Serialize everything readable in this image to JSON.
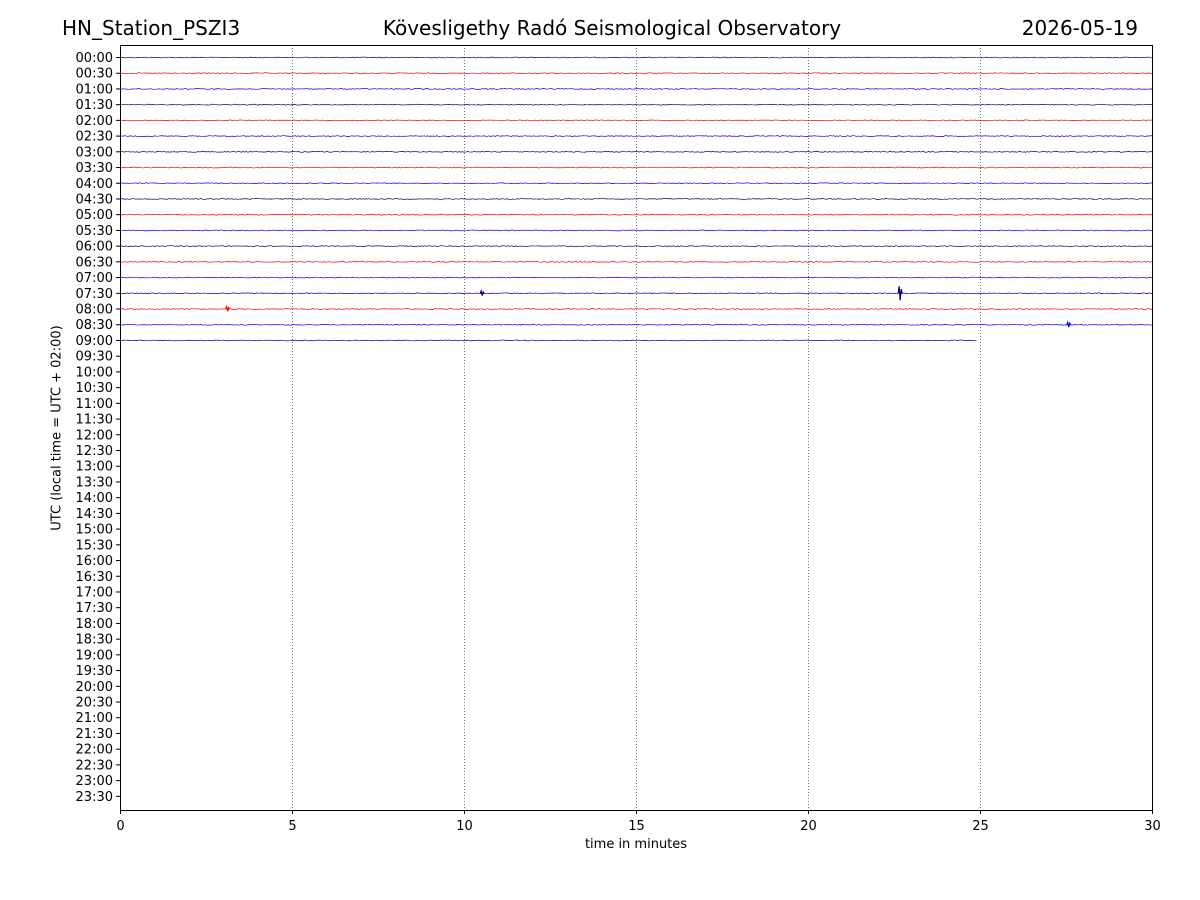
{
  "header": {
    "station": "HN_Station_PSZI3",
    "observatory": "Kövesligethy Radó Seismological Observatory",
    "date": "2026-05-19"
  },
  "chart_data": {
    "type": "line",
    "xlabel": "time in minutes",
    "ylabel": "UTC (local time = UTC + 02:00)",
    "xlim": [
      0,
      30
    ],
    "xticks": [
      "0",
      "5",
      "10",
      "15",
      "20",
      "25",
      "30"
    ],
    "xtick_values": [
      0,
      5,
      10,
      15,
      20,
      25,
      30
    ],
    "vgrid_values": [
      5,
      10,
      15,
      20,
      25
    ],
    "grid": "vertical dotted lines",
    "row_labels": [
      "00:00",
      "00:30",
      "01:00",
      "01:30",
      "02:00",
      "02:30",
      "03:00",
      "03:30",
      "04:00",
      "04:30",
      "05:00",
      "05:30",
      "06:00",
      "06:30",
      "07:00",
      "07:30",
      "08:00",
      "08:30",
      "09:00",
      "09:30",
      "10:00",
      "10:30",
      "11:00",
      "11:30",
      "12:00",
      "12:30",
      "13:00",
      "13:30",
      "14:00",
      "14:30",
      "15:00",
      "15:30",
      "16:00",
      "16:30",
      "17:00",
      "17:30",
      "18:00",
      "18:30",
      "19:00",
      "19:30",
      "20:00",
      "20:30",
      "21:00",
      "21:30",
      "22:00",
      "22:30",
      "23:00",
      "23:30"
    ],
    "trace_colors": [
      "#00007f",
      "#ff0000",
      "#0000ff"
    ],
    "traces": [
      {
        "row": "00:00",
        "end": 30,
        "events": []
      },
      {
        "row": "00:30",
        "end": 30,
        "events": []
      },
      {
        "row": "01:00",
        "end": 30,
        "events": []
      },
      {
        "row": "01:30",
        "end": 30,
        "events": []
      },
      {
        "row": "02:00",
        "end": 30,
        "events": []
      },
      {
        "row": "02:30",
        "end": 30,
        "events": []
      },
      {
        "row": "03:00",
        "end": 30,
        "events": []
      },
      {
        "row": "03:30",
        "end": 30,
        "events": []
      },
      {
        "row": "04:00",
        "end": 30,
        "events": []
      },
      {
        "row": "04:30",
        "end": 30,
        "events": []
      },
      {
        "row": "05:00",
        "end": 30,
        "events": []
      },
      {
        "row": "05:30",
        "end": 30,
        "events": []
      },
      {
        "row": "06:00",
        "end": 30,
        "events": []
      },
      {
        "row": "06:30",
        "end": 30,
        "events": []
      },
      {
        "row": "07:00",
        "end": 30,
        "events": []
      },
      {
        "row": "07:30",
        "end": 30,
        "events": [
          {
            "t": 10.5,
            "amp": 0.15
          },
          {
            "t": 22.65,
            "amp": 0.45
          }
        ]
      },
      {
        "row": "08:00",
        "end": 30,
        "events": [
          {
            "t": 3.1,
            "amp": 0.15
          }
        ]
      },
      {
        "row": "08:30",
        "end": 30,
        "events": [
          {
            "t": 27.55,
            "amp": 0.15
          }
        ]
      },
      {
        "row": "09:00",
        "end": 24.9,
        "events": []
      }
    ]
  }
}
